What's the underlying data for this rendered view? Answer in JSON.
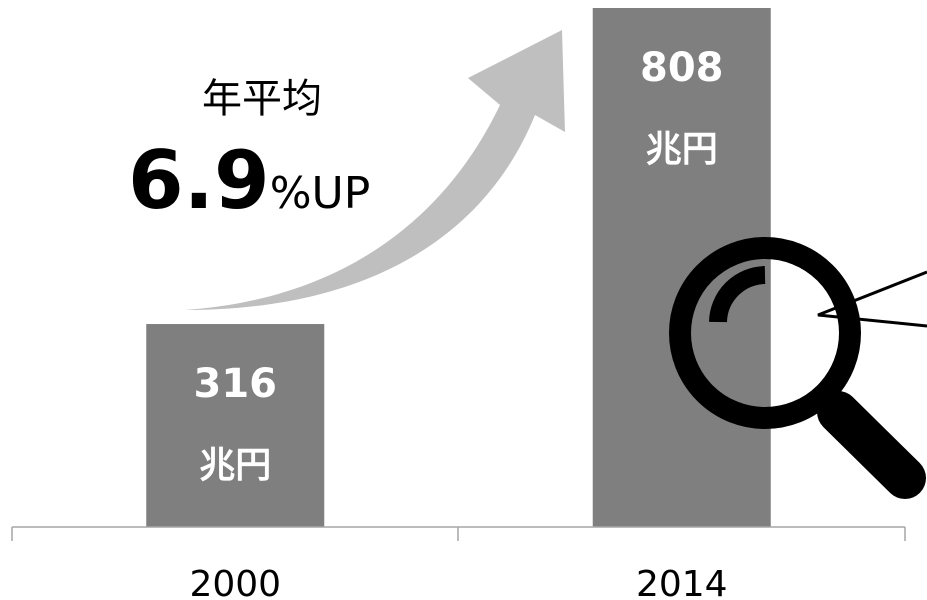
{
  "chart_data": {
    "type": "bar",
    "categories": [
      "2000",
      "2014"
    ],
    "values": [
      316,
      808
    ],
    "unit": "兆円",
    "color": "#7f7f7f",
    "annotation": {
      "line1": "年平均",
      "value": 6.9,
      "suffix": "%UP"
    }
  }
}
